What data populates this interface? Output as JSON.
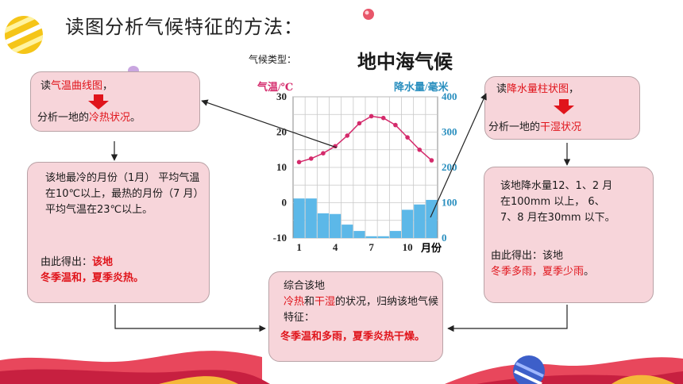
{
  "page_title": "读图分析气候特征的方法：",
  "climate_type_label": "气候类型：",
  "climate_type_name": "地中海气候",
  "left_method": {
    "line1_prefix": "读",
    "line1_highlight": "气温曲线图",
    "line1_suffix": "，",
    "line2_prefix": "分析一地的",
    "line2_highlight": "冷热状况",
    "line2_suffix": "。"
  },
  "right_method": {
    "line1_prefix": "读",
    "line1_highlight": "降水量柱状图",
    "line1_suffix": "，",
    "line2_prefix": "分析一地的",
    "line2_highlight": "干湿状况",
    "line2_suffix": ""
  },
  "left_detail": {
    "body": "该地最冷的月份（1月） 平均气温在10℃以上，最热的月份（7 月） 平均气温在23℃以上。",
    "conclusion_prefix": "由此得出：",
    "conclusion_line1": "该地",
    "conclusion_line2": "冬季温和，夏季炎热。"
  },
  "right_detail": {
    "body": "该地降水量12、1、2 月在100mm 以上， 6、7、8 月在30mm 以下。",
    "conclusion_prefix": "由此得出：该地",
    "conclusion_highlight": "冬季多雨，夏季少雨",
    "conclusion_suffix": "。"
  },
  "summary": {
    "line1": "综合该地",
    "hl1": "冷热",
    "mid": "和",
    "hl2": "干湿",
    "line2_suffix": "的状况，归纳该地气候特征：",
    "conclusion": "冬季温和多雨，夏季炎热干燥。"
  },
  "colors": {
    "accent_red": "#e0141b",
    "box_fill": "#f7d5da",
    "bar_fill": "#5cb8e8",
    "line_color": "#d42a6b",
    "precip_axis_color": "#2a8fbf"
  },
  "chart_data": {
    "type": "bar+line",
    "left_axis_label": "气温/℃",
    "right_axis_label": "降水量/毫米",
    "x_unit": "月份",
    "x_tick_labels": [
      "1",
      "4",
      "7",
      "10"
    ],
    "months": [
      1,
      2,
      3,
      4,
      5,
      6,
      7,
      8,
      9,
      10,
      11,
      12
    ],
    "temperature_c": [
      11.5,
      12.5,
      14,
      16,
      19,
      22.5,
      24.5,
      24,
      22,
      18.5,
      15,
      12
    ],
    "precipitation_mm": [
      112,
      112,
      70,
      68,
      38,
      20,
      5,
      5,
      20,
      80,
      95,
      108
    ],
    "temperature_ylim": [
      -10,
      30
    ],
    "temperature_ticks": [
      -10,
      0,
      10,
      20,
      30
    ],
    "precipitation_ylim": [
      0,
      400
    ],
    "precipitation_ticks": [
      0,
      100,
      200,
      300,
      400
    ],
    "grid": true
  }
}
